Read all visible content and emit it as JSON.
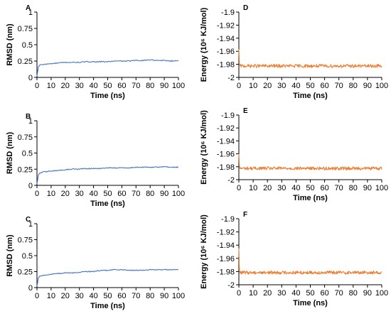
{
  "chart_data": [
    {
      "panel": "A",
      "type": "line",
      "xlabel": "Time (ns)",
      "ylabel": "RMSD (nm)",
      "xlim": [
        0,
        100
      ],
      "ylim": [
        0,
        1
      ],
      "xticks": [
        "0",
        "10",
        "20",
        "30",
        "40",
        "50",
        "60",
        "70",
        "80",
        "90",
        "100"
      ],
      "yticks": [
        "0",
        "0.25",
        "0.5",
        "0.75",
        "1"
      ],
      "color": "#4472C4",
      "series": [
        {
          "x": [
            0,
            1,
            2,
            5,
            10,
            15,
            20,
            25,
            30,
            35,
            40,
            45,
            50,
            55,
            60,
            65,
            70,
            75,
            80,
            85,
            90,
            95,
            100
          ],
          "y": [
            0.02,
            0.16,
            0.19,
            0.2,
            0.21,
            0.22,
            0.23,
            0.23,
            0.23,
            0.24,
            0.24,
            0.24,
            0.24,
            0.25,
            0.25,
            0.25,
            0.26,
            0.26,
            0.27,
            0.26,
            0.26,
            0.25,
            0.26
          ]
        }
      ]
    },
    {
      "panel": "B",
      "type": "line",
      "xlabel": "Time (ns)",
      "ylabel": "RMSD (nm)",
      "xlim": [
        0,
        100
      ],
      "ylim": [
        0,
        1
      ],
      "xticks": [
        "0",
        "10",
        "20",
        "30",
        "40",
        "50",
        "60",
        "70",
        "80",
        "90",
        "100"
      ],
      "yticks": [
        "0",
        "0.25",
        "0.5",
        "0.75",
        "1"
      ],
      "color": "#4472C4",
      "series": [
        {
          "x": [
            0,
            1,
            2,
            5,
            10,
            15,
            20,
            25,
            30,
            35,
            40,
            45,
            50,
            55,
            60,
            65,
            70,
            75,
            80,
            85,
            90,
            95,
            100
          ],
          "y": [
            0.02,
            0.16,
            0.19,
            0.21,
            0.22,
            0.23,
            0.24,
            0.25,
            0.25,
            0.26,
            0.26,
            0.26,
            0.27,
            0.27,
            0.27,
            0.27,
            0.28,
            0.28,
            0.28,
            0.28,
            0.29,
            0.28,
            0.28
          ]
        }
      ]
    },
    {
      "panel": "C",
      "type": "line",
      "xlabel": "Time (ns)",
      "ylabel": "RMSD (nm)",
      "xlim": [
        0,
        100
      ],
      "ylim": [
        0,
        1
      ],
      "xticks": [
        "0",
        "10",
        "20",
        "30",
        "40",
        "50",
        "60",
        "70",
        "80",
        "90",
        "100"
      ],
      "yticks": [
        "0",
        "0.25",
        "0.5",
        "0.75",
        "1"
      ],
      "color": "#4472C4",
      "series": [
        {
          "x": [
            0,
            1,
            2,
            5,
            10,
            15,
            20,
            25,
            30,
            35,
            40,
            45,
            50,
            55,
            60,
            65,
            70,
            75,
            80,
            85,
            90,
            95,
            100
          ],
          "y": [
            0.02,
            0.15,
            0.18,
            0.19,
            0.21,
            0.22,
            0.23,
            0.23,
            0.24,
            0.25,
            0.25,
            0.27,
            0.27,
            0.28,
            0.28,
            0.27,
            0.27,
            0.27,
            0.28,
            0.28,
            0.28,
            0.28,
            0.28
          ]
        }
      ]
    },
    {
      "panel": "D",
      "type": "line",
      "xlabel": "Time (ns)",
      "ylabel": "Energy (10⁶ KJ/mol)",
      "xlim": [
        0,
        100
      ],
      "ylim": [
        -2,
        -1.9
      ],
      "xticks": [
        "0",
        "10",
        "20",
        "30",
        "40",
        "50",
        "60",
        "70",
        "80",
        "90",
        "100"
      ],
      "yticks": [
        "-2",
        "-1.98",
        "-1.96",
        "-1.94",
        "-1.92",
        "-1.9"
      ],
      "color": "#ED7D31",
      "initial": -1.957,
      "mean": -1.9825,
      "noise": 0.0025,
      "series": [
        {
          "x": [
            0,
            100
          ],
          "y": [
            -1.9825,
            -1.9825
          ]
        }
      ]
    },
    {
      "panel": "E",
      "type": "line",
      "xlabel": "Time (ns)",
      "ylabel": "Energy (10⁶ KJ/mol)",
      "xlim": [
        0,
        100
      ],
      "ylim": [
        -2,
        -1.9
      ],
      "xticks": [
        "0",
        "10",
        "20",
        "30",
        "40",
        "50",
        "60",
        "70",
        "80",
        "90",
        "100"
      ],
      "yticks": [
        "-2",
        "-1.98",
        "-1.96",
        "-1.94",
        "-1.92",
        "-1.9"
      ],
      "color": "#ED7D31",
      "initial": -1.96,
      "mean": -1.9825,
      "noise": 0.0025,
      "series": [
        {
          "x": [
            0,
            100
          ],
          "y": [
            -1.9825,
            -1.9825
          ]
        }
      ]
    },
    {
      "panel": "F",
      "type": "line",
      "xlabel": "Time (ns)",
      "ylabel": "Energy (10⁶ KJ/mol)",
      "xlim": [
        0,
        100
      ],
      "ylim": [
        -2,
        -1.9
      ],
      "xticks": [
        "0",
        "10",
        "20",
        "30",
        "40",
        "50",
        "60",
        "70",
        "80",
        "90",
        "100"
      ],
      "yticks": [
        "-2",
        "-1.98",
        "-1.96",
        "-1.94",
        "-1.92",
        "-1.9"
      ],
      "color": "#ED7D31",
      "initial": -1.945,
      "mean": -1.9815,
      "noise": 0.0025,
      "series": [
        {
          "x": [
            0,
            100
          ],
          "y": [
            -1.9815,
            -1.9815
          ]
        }
      ]
    }
  ]
}
